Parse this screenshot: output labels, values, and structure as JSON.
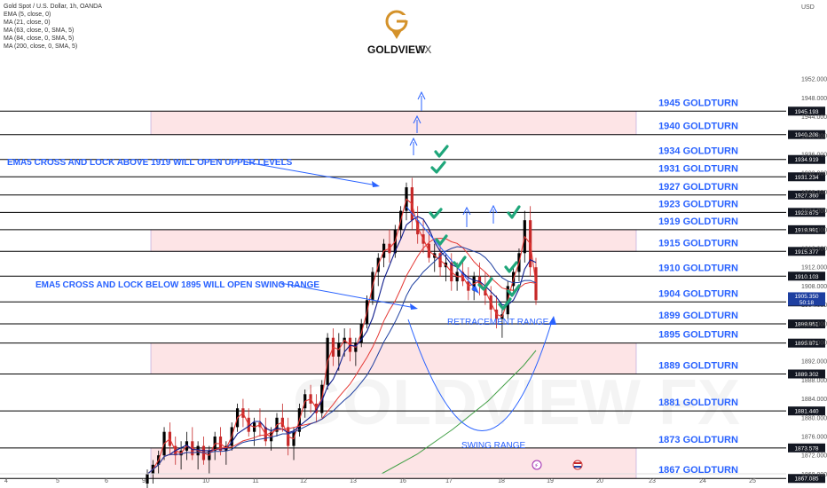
{
  "header": {
    "symbol_line": "Gold Spot / U.S. Dollar, 1h, OANDA",
    "indicators": [
      "EMA (5, close, 0)",
      "MA (21, close, 0)",
      "MA (63, close, 0, SMA, 5)",
      "MA (84, close, 0, SMA, 5)",
      "MA (200, close, 0, SMA, 5)"
    ],
    "currency": "USD"
  },
  "logo": {
    "text": "GOLDVIEW",
    "suffix": "FX",
    "watermark": "GOLDVIEW FX"
  },
  "colors": {
    "zone_fill": "#fde4e6",
    "zone_border": "#b39ddb",
    "level_line": "#000000",
    "label_blue": "#2962ff",
    "ema5": "#e53935",
    "ma21": "#0d1b8c",
    "ma63": "#e53935",
    "ma84": "#1e3fa0",
    "ma200": "#43a047",
    "check": "#1fa67a",
    "candle_up": "#000000",
    "candle_down": "#c62828",
    "logo_gold": "#d4922a"
  },
  "chart_data": {
    "type": "candlestick",
    "title": "Gold Spot / U.S. Dollar, 1h, OANDA",
    "ylim": [
      1866,
      1957
    ],
    "x_ticks": [
      "4",
      "5",
      "6",
      "9",
      "10",
      "11",
      "12",
      "13",
      "16",
      "17",
      "18",
      "19",
      "20",
      "23",
      "24",
      "25"
    ],
    "y_ticks": [
      1952.0,
      1948.0,
      1944.0,
      1940.0,
      1936.0,
      1932.0,
      1928.0,
      1924.0,
      1920.0,
      1916.0,
      1912.0,
      1908.0,
      1904.0,
      1900.0,
      1896.0,
      1892.0,
      1888.0,
      1884.0,
      1880.0,
      1876.0,
      1872.0,
      1868.0
    ],
    "levels": [
      {
        "label": "1945 GOLDTURN",
        "price": 1945.193,
        "tag": "1945.193"
      },
      {
        "label": "1940 GOLDTURN",
        "price": 1940.208,
        "tag": "1940.208"
      },
      {
        "label": "1934 GOLDTURN",
        "price": 1934.919,
        "tag": "1934.919"
      },
      {
        "label": "1931 GOLDTURN",
        "price": 1931.234,
        "tag": "1931.234"
      },
      {
        "label": "1927 GOLDTURN",
        "price": 1927.36,
        "tag": "1927.360"
      },
      {
        "label": "1923 GOLDTURN",
        "price": 1923.675,
        "tag": "1923.675"
      },
      {
        "label": "1919 GOLDTURN",
        "price": 1919.991,
        "tag": "1919.991"
      },
      {
        "label": "1915 GOLDTURN",
        "price": 1915.377,
        "tag": "1915.377"
      },
      {
        "label": "1910 GOLDTURN",
        "price": 1910.103,
        "tag": "1910.103"
      },
      {
        "label": "1904 GOLDTURN",
        "price": 1904.629,
        "tag": "1904.629"
      },
      {
        "label": "1899 GOLDTURN",
        "price": 1899.951,
        "tag": "1899.951"
      },
      {
        "label": "1895 GOLDTURN",
        "price": 1895.871,
        "tag": "1895.871"
      },
      {
        "label": "1889 GOLDTURN",
        "price": 1889.302,
        "tag": "1889.302"
      },
      {
        "label": "1881 GOLDTURN",
        "price": 1881.44,
        "tag": "1881.440"
      },
      {
        "label": "1873 GOLDTURN",
        "price": 1873.578,
        "tag": "1873.578"
      },
      {
        "label": "1867 GOLDTURN",
        "price": 1867.085,
        "tag": "1867.085"
      }
    ],
    "current_price": {
      "value": "1905.350",
      "countdown": "50:18"
    },
    "zones": [
      {
        "from": 1940.208,
        "to": 1945.193
      },
      {
        "from": 1915.377,
        "to": 1919.991
      },
      {
        "from": 1889.302,
        "to": 1895.871
      },
      {
        "from": 1867.085,
        "to": 1873.578
      }
    ],
    "annotations": {
      "upper_note": "EMA5 CROSS AND LOCK ABOVE 1919 WILL OPEN UPPER LEVELS",
      "lower_note": "EMA5 CROSS AND LOCK BELOW 1895 WILL OPEN SWING RANGE",
      "retracement": "RETRACEMENT RANGE",
      "swing": "SWING RANGE"
    },
    "candles": [
      [
        1866,
        1869,
        1864,
        1868
      ],
      [
        1868,
        1871,
        1866,
        1870
      ],
      [
        1870,
        1873,
        1868,
        1872
      ],
      [
        1872,
        1878,
        1871,
        1877
      ],
      [
        1877,
        1879,
        1872,
        1874
      ],
      [
        1874,
        1876,
        1870,
        1872
      ],
      [
        1872,
        1875,
        1869,
        1873
      ],
      [
        1873,
        1877,
        1871,
        1875
      ],
      [
        1875,
        1878,
        1871,
        1872
      ],
      [
        1872,
        1875,
        1869,
        1874
      ],
      [
        1874,
        1876,
        1870,
        1871
      ],
      [
        1871,
        1874,
        1868,
        1873
      ],
      [
        1873,
        1877,
        1871,
        1876
      ],
      [
        1876,
        1878,
        1872,
        1873
      ],
      [
        1873,
        1875,
        1870,
        1874
      ],
      [
        1874,
        1879,
        1873,
        1878
      ],
      [
        1878,
        1883,
        1877,
        1882
      ],
      [
        1882,
        1884,
        1878,
        1880
      ],
      [
        1880,
        1882,
        1876,
        1877
      ],
      [
        1877,
        1880,
        1874,
        1879
      ],
      [
        1879,
        1882,
        1876,
        1878
      ],
      [
        1878,
        1880,
        1874,
        1875
      ],
      [
        1875,
        1878,
        1873,
        1877
      ],
      [
        1877,
        1881,
        1876,
        1880
      ],
      [
        1880,
        1883,
        1877,
        1878
      ],
      [
        1878,
        1880,
        1872,
        1874
      ],
      [
        1874,
        1878,
        1871,
        1877
      ],
      [
        1877,
        1883,
        1876,
        1882
      ],
      [
        1882,
        1886,
        1880,
        1885
      ],
      [
        1885,
        1887,
        1881,
        1883
      ],
      [
        1883,
        1885,
        1879,
        1881
      ],
      [
        1881,
        1888,
        1880,
        1887
      ],
      [
        1887,
        1898,
        1886,
        1897
      ],
      [
        1897,
        1899,
        1891,
        1893
      ],
      [
        1893,
        1898,
        1890,
        1896
      ],
      [
        1896,
        1899,
        1893,
        1897
      ],
      [
        1897,
        1899,
        1892,
        1894
      ],
      [
        1894,
        1897,
        1891,
        1896
      ],
      [
        1896,
        1901,
        1895,
        1900
      ],
      [
        1900,
        1906,
        1899,
        1905
      ],
      [
        1905,
        1912,
        1904,
        1911
      ],
      [
        1911,
        1915,
        1908,
        1914
      ],
      [
        1914,
        1918,
        1912,
        1917
      ],
      [
        1917,
        1920,
        1913,
        1915
      ],
      [
        1915,
        1921,
        1914,
        1920
      ],
      [
        1920,
        1925,
        1918,
        1924
      ],
      [
        1924,
        1930,
        1922,
        1929
      ],
      [
        1929,
        1931,
        1920,
        1922
      ],
      [
        1922,
        1925,
        1917,
        1919
      ],
      [
        1919,
        1922,
        1915,
        1917
      ],
      [
        1917,
        1920,
        1913,
        1914
      ],
      [
        1914,
        1917,
        1911,
        1915
      ],
      [
        1915,
        1917,
        1910,
        1912
      ],
      [
        1912,
        1915,
        1909,
        1913
      ],
      [
        1913,
        1915,
        1907,
        1909
      ],
      [
        1909,
        1913,
        1907,
        1911
      ],
      [
        1911,
        1914,
        1908,
        1909
      ],
      [
        1909,
        1912,
        1905,
        1907
      ],
      [
        1907,
        1911,
        1905,
        1910
      ],
      [
        1910,
        1913,
        1906,
        1908
      ],
      [
        1908,
        1911,
        1904,
        1906
      ],
      [
        1906,
        1908,
        1901,
        1903
      ],
      [
        1903,
        1906,
        1899,
        1901
      ],
      [
        1901,
        1904,
        1897,
        1902
      ],
      [
        1902,
        1909,
        1901,
        1908
      ],
      [
        1908,
        1912,
        1906,
        1911
      ],
      [
        1911,
        1916,
        1909,
        1915
      ],
      [
        1915,
        1924,
        1913,
        1922
      ],
      [
        1922,
        1925,
        1910,
        1912
      ],
      [
        1912,
        1914,
        1904,
        1905
      ]
    ]
  }
}
